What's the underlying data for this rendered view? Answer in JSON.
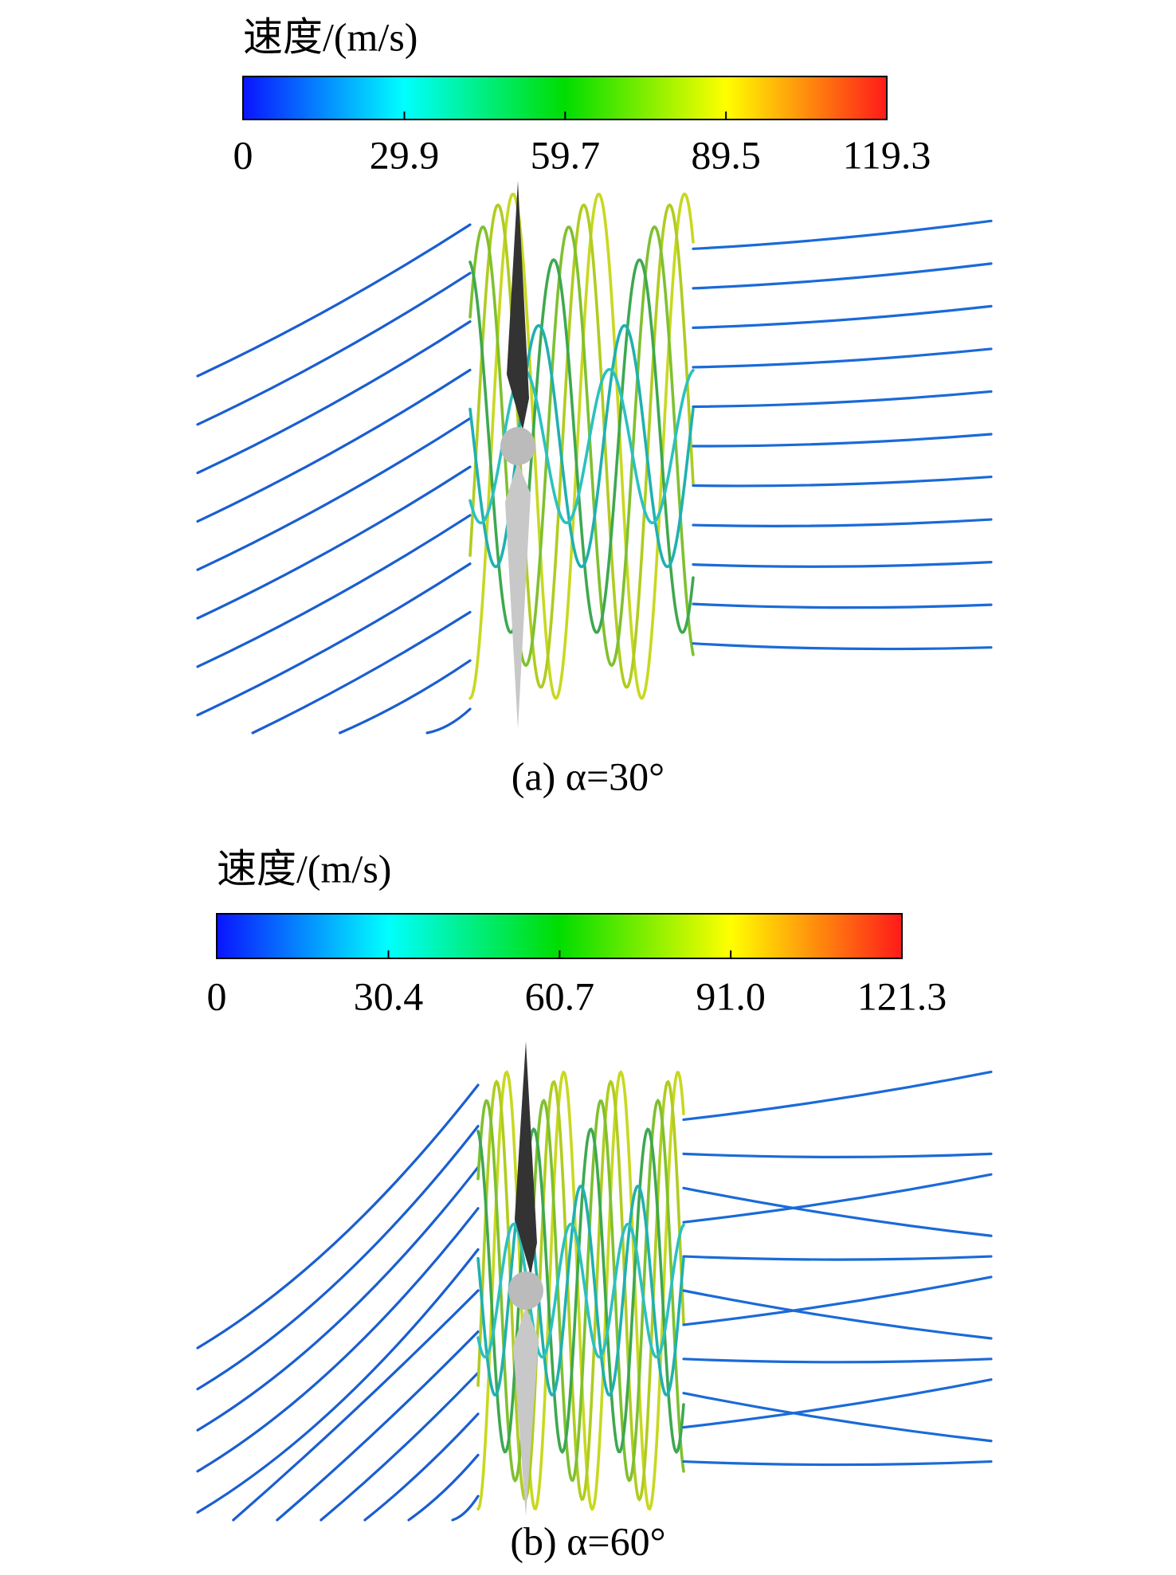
{
  "chart_data": [
    {
      "type": "colorbar",
      "title": "速度/(m/s)",
      "caption": "(a) α=30°",
      "xlim": [
        0,
        119.3
      ],
      "xticks": [
        0,
        29.9,
        59.7,
        89.5,
        119.3
      ],
      "colors": [
        "#0a14ff",
        "#00ffff",
        "#00dd00",
        "#ffff00",
        "#ff1a1a"
      ]
    },
    {
      "type": "colorbar",
      "title": "速度/(m/s)",
      "caption": "(b) α=60°",
      "xlim": [
        0,
        121.3
      ],
      "xticks": [
        0,
        30.4,
        60.7,
        {
          "value": 91,
          "label": "91.0"
        },
        121.3
      ],
      "colors": [
        "#0a14ff",
        "#00ffff",
        "#00dd00",
        "#ffff00",
        "#ff1a1a"
      ]
    }
  ]
}
